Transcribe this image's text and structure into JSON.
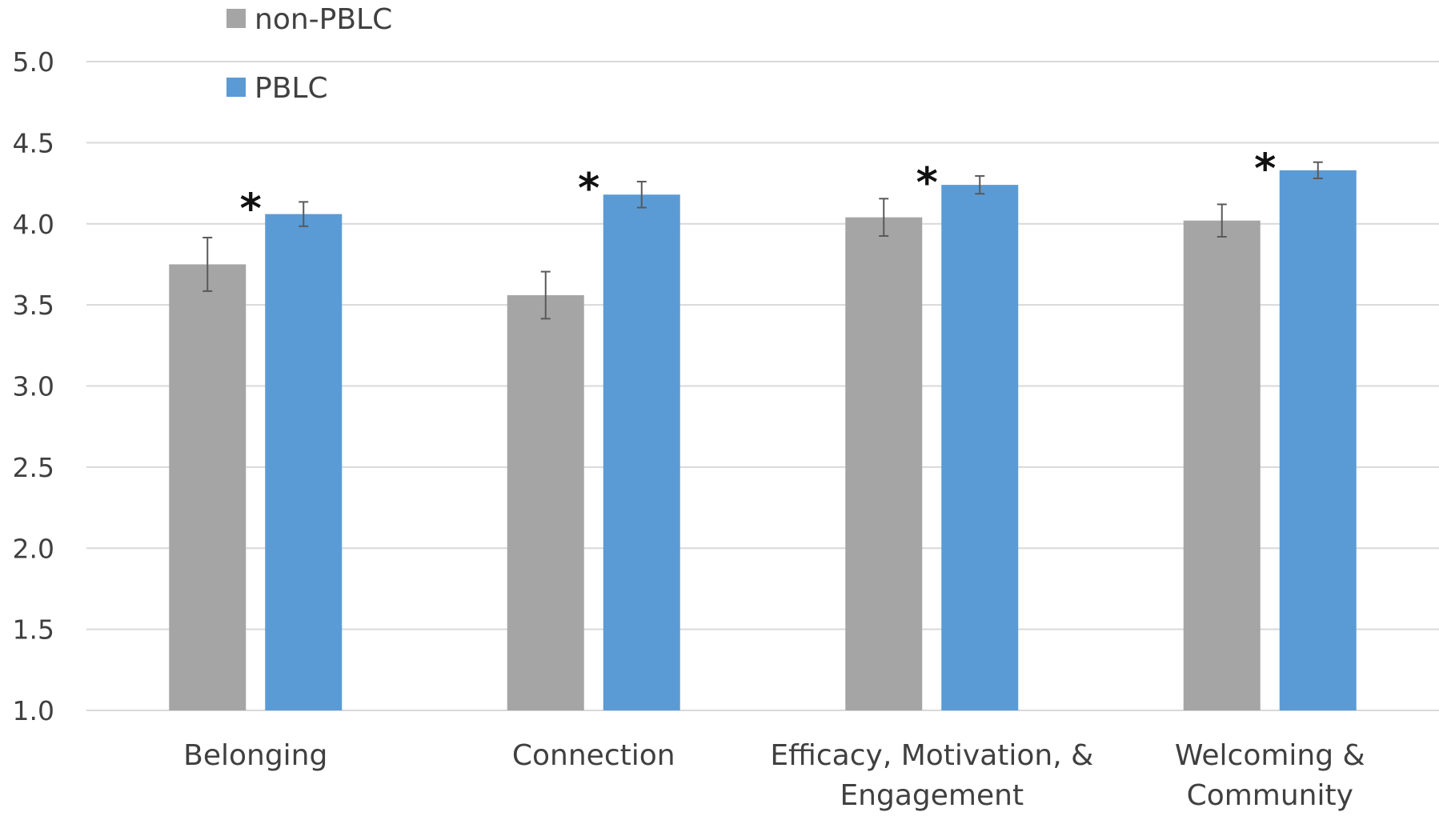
{
  "chart_data": {
    "type": "bar",
    "title": "",
    "xlabel": "",
    "ylabel": "",
    "ylim": [
      1.0,
      5.0
    ],
    "yticks": [
      "1.0",
      "1.5",
      "2.0",
      "2.5",
      "3.0",
      "3.5",
      "4.0",
      "4.5",
      "5.0"
    ],
    "grid": true,
    "legend_position": "top-left",
    "categories": [
      [
        "Belonging"
      ],
      [
        "Connection"
      ],
      [
        "Efficacy, Motivation, &",
        "Engagement"
      ],
      [
        "Welcoming &",
        "Community"
      ]
    ],
    "series": [
      {
        "name": "non-PBLC",
        "color": "#A5A5A5",
        "values": [
          3.75,
          3.56,
          4.04,
          4.02
        ],
        "error": [
          0.165,
          0.145,
          0.115,
          0.1
        ]
      },
      {
        "name": "PBLC",
        "color": "#5B9BD5",
        "values": [
          4.06,
          4.18,
          4.24,
          4.33
        ],
        "error": [
          0.075,
          0.08,
          0.055,
          0.05
        ]
      }
    ],
    "significance_marks": [
      "*",
      "*",
      "*",
      "*"
    ]
  }
}
